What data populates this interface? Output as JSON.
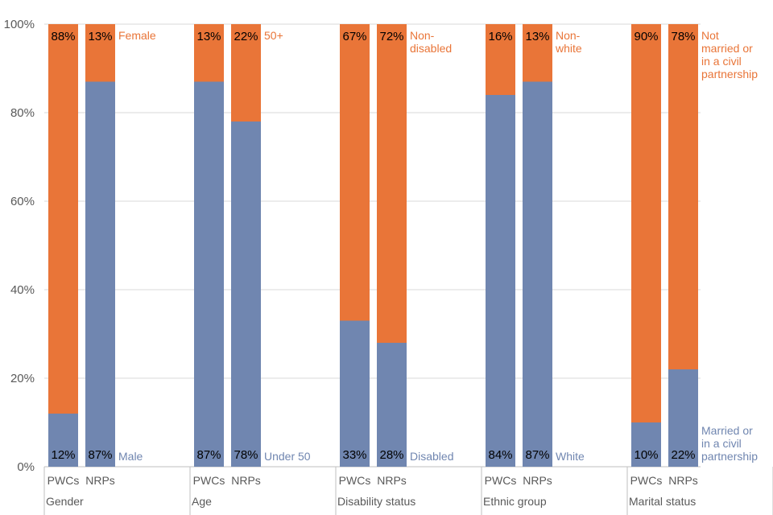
{
  "chart_data": {
    "type": "bar",
    "stacked": true,
    "ylim": [
      0,
      100
    ],
    "yticks": [
      "0%",
      "20%",
      "40%",
      "60%",
      "80%",
      "100%"
    ],
    "bar_labels": [
      "PWCs",
      "NRPs"
    ],
    "groups": [
      {
        "name": "Gender",
        "bars": [
          {
            "bar": "PWCs",
            "bottom": 12,
            "top": 88
          },
          {
            "bar": "NRPs",
            "bottom": 87,
            "top": 13
          }
        ],
        "bottom_label": "Male",
        "top_label": "Female"
      },
      {
        "name": "Age",
        "bars": [
          {
            "bar": "PWCs",
            "bottom": 87,
            "top": 13
          },
          {
            "bar": "NRPs",
            "bottom": 78,
            "top": 22
          }
        ],
        "bottom_label": "Under 50",
        "top_label": "50+"
      },
      {
        "name": "Disability status",
        "bars": [
          {
            "bar": "PWCs",
            "bottom": 33,
            "top": 67
          },
          {
            "bar": "NRPs",
            "bottom": 28,
            "top": 72
          }
        ],
        "bottom_label": "Disabled",
        "top_label": "Non-\ndisabled"
      },
      {
        "name": "Ethnic group",
        "bars": [
          {
            "bar": "PWCs",
            "bottom": 84,
            "top": 16
          },
          {
            "bar": "NRPs",
            "bottom": 87,
            "top": 13
          }
        ],
        "bottom_label": "White",
        "top_label": "Non-\nwhite"
      },
      {
        "name": "Marital status",
        "bars": [
          {
            "bar": "PWCs",
            "bottom": 10,
            "top": 90
          },
          {
            "bar": "NRPs",
            "bottom": 22,
            "top": 78
          }
        ],
        "bottom_label": "Married or\nin a civil\npartnership",
        "top_label": "Not\nmarried or\nin a civil\npartnership"
      }
    ],
    "colors": {
      "bottom": "#7086b0",
      "top": "#e97538",
      "grid": "#d9d9d9",
      "axis": "#bfbfbf"
    },
    "grid": true
  }
}
